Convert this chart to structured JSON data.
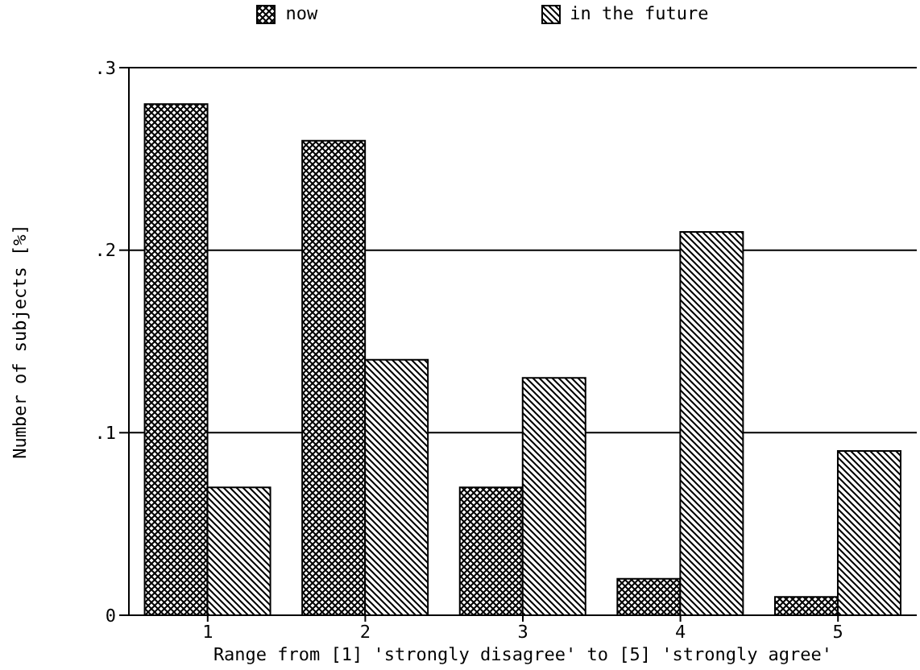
{
  "chart_data": {
    "type": "bar",
    "xlabel": "Range from [1] 'strongly disagree' to [5] 'strongly agree'",
    "ylabel": "Number of subjects [%]",
    "categories": [
      "1",
      "2",
      "3",
      "4",
      "5"
    ],
    "series": [
      {
        "name": "now",
        "color": "#000000",
        "values": [
          0.28,
          0.26,
          0.07,
          0.02,
          0.01
        ]
      },
      {
        "name": "in the future",
        "color": "#000000",
        "values": [
          0.07,
          0.14,
          0.13,
          0.21,
          0.09
        ]
      }
    ],
    "ylim": [
      0,
      0.3
    ],
    "yticks": [
      0,
      {
        "value": 0.1,
        "label": ".1"
      },
      {
        "value": 0.2,
        "label": ".2"
      },
      {
        "value": 0.3,
        "label": ".3"
      }
    ],
    "grid": "y",
    "legend": "top"
  }
}
